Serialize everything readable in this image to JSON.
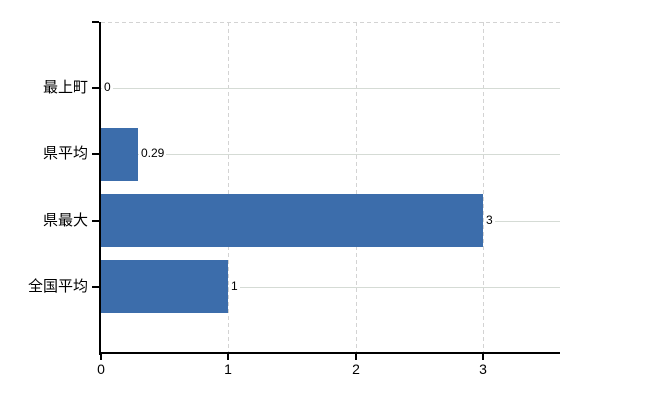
{
  "chart_data": {
    "type": "bar",
    "orientation": "horizontal",
    "title": "",
    "categories": [
      "最上町",
      "県平均",
      "県最大",
      "全国平均"
    ],
    "values": [
      0,
      0.29,
      3,
      1
    ],
    "value_labels": [
      "0",
      "0.29",
      "3",
      "1"
    ],
    "x_ticks": [
      0,
      1,
      2,
      3
    ],
    "x_tick_labels": [
      "0",
      "1",
      "2",
      "3"
    ],
    "xlim": [
      0,
      3.6
    ],
    "grid": true,
    "legend": "none",
    "bar_color": "#3c6dab",
    "axis_color": "#000000",
    "h_gridline_color": "#d5dbd5",
    "v_gridline_color": "#d3d3d3",
    "text_color": "#000000",
    "background": "#ffffff"
  }
}
